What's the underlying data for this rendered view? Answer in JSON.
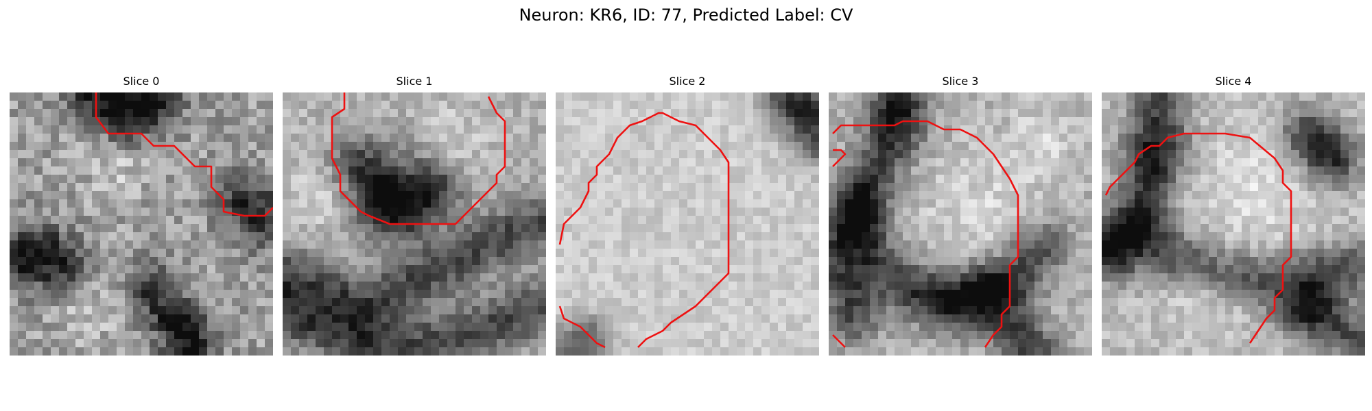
{
  "figure": {
    "title": "Neuron: KR6, ID: 77, Predicted Label: CV"
  },
  "panels": [
    {
      "title": "Slice 0",
      "image_description": "grayscale pixelated microscopy patch with red contour line in upper right",
      "contour_color": "#ee1111"
    },
    {
      "title": "Slice 1",
      "image_description": "grayscale pixelated microscopy patch with red contour outlining rounded region",
      "contour_color": "#ee1111"
    },
    {
      "title": "Slice 2",
      "image_description": "grayscale pixelated microscopy patch with red oval contour",
      "contour_color": "#ee1111"
    },
    {
      "title": "Slice 3",
      "image_description": "grayscale pixelated microscopy patch with dark membrane and red contour",
      "contour_color": "#ee1111"
    },
    {
      "title": "Slice 4",
      "image_description": "grayscale pixelated microscopy patch with dark membrane and red contour",
      "contour_color": "#ee1111"
    }
  ]
}
